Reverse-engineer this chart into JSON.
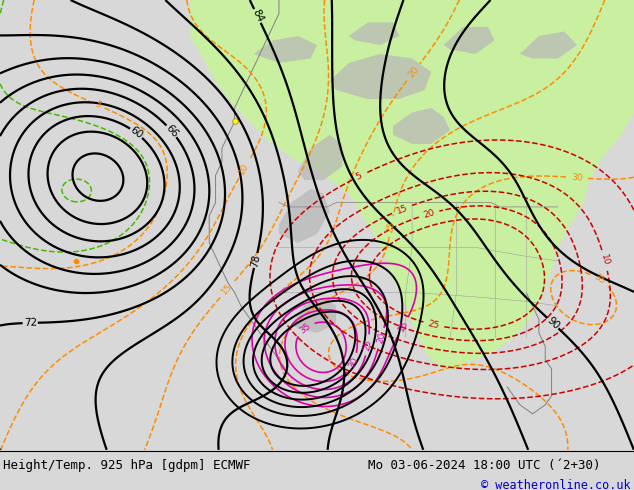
{
  "title_left": "Height/Temp. 925 hPa [gdpm] ECMWF",
  "title_right": "Mo 03-06-2024 18:00 UTC (´2+30)",
  "copyright": "© weatheronline.co.uk",
  "bg_color": "#d8d8d8",
  "map_bg_color": "#d8d8d8",
  "land_green_light": "#c8f0a0",
  "gray_region": "#b0b0b0",
  "fig_width": 6.34,
  "fig_height": 4.9,
  "dpi": 100,
  "bottom_bar_color": "#f0f0ee",
  "title_fontsize": 9.0,
  "copyright_fontsize": 8.5,
  "copyright_color": "#0000cc"
}
